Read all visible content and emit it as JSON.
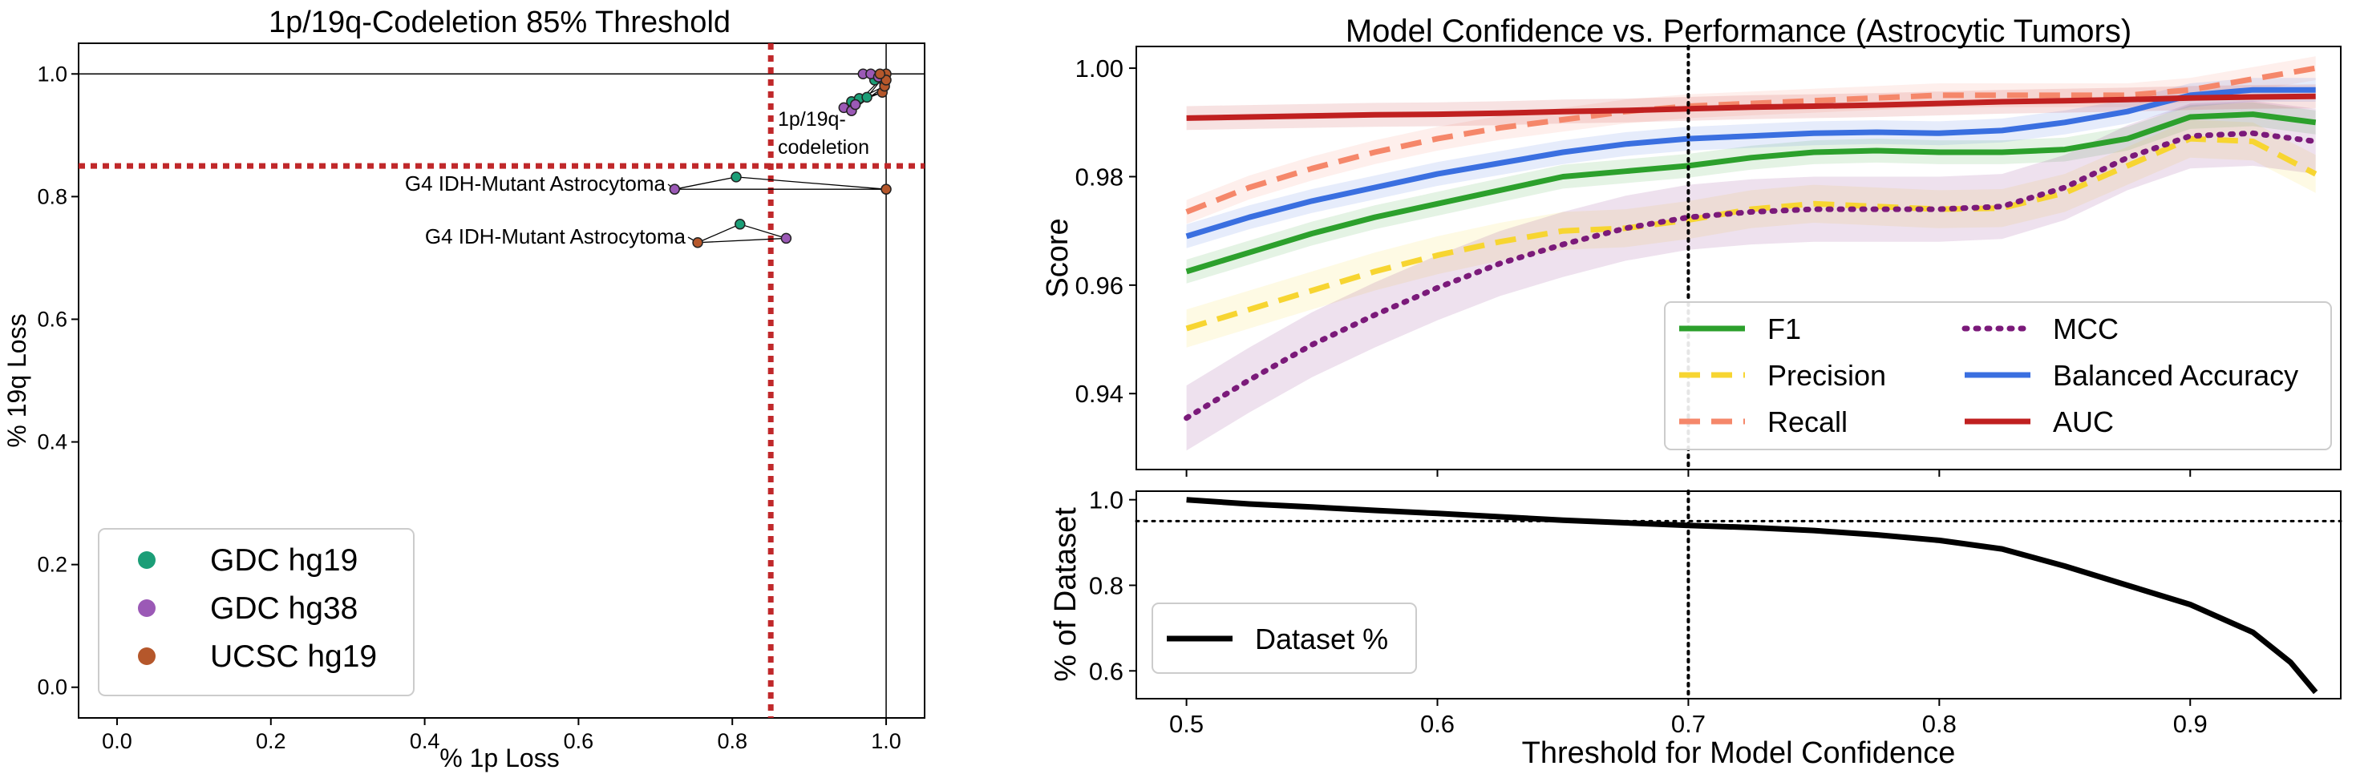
{
  "chart_data": [
    {
      "type": "scatter",
      "title": "1p/19q-Codeletion 85% Threshold",
      "xlabel": "% 1p Loss",
      "ylabel": "% 19q Loss",
      "xlim": [
        -0.05,
        1.05
      ],
      "ylim": [
        -0.05,
        1.05
      ],
      "xticks": [
        "0.0",
        "0.2",
        "0.4",
        "0.6",
        "0.8",
        "1.0"
      ],
      "yticks": [
        "0.0",
        "0.2",
        "0.4",
        "0.6",
        "0.8",
        "1.0"
      ],
      "threshold": 0.85,
      "legend_position": "lower left",
      "series": [
        {
          "name": "GDC hg19",
          "color": "#1b9e77",
          "points": [
            [
              0.805,
              0.832
            ],
            [
              0.81,
              0.755
            ],
            [
              0.955,
              0.955
            ],
            [
              0.965,
              0.96
            ],
            [
              0.975,
              0.962
            ],
            [
              0.985,
              0.99
            ],
            [
              0.99,
              0.998
            ],
            [
              0.998,
              0.985
            ]
          ]
        },
        {
          "name": "GDC hg38",
          "color": "#9b59b6",
          "points": [
            [
              0.725,
              0.812
            ],
            [
              0.87,
              0.732
            ],
            [
              0.945,
              0.945
            ],
            [
              0.955,
              0.94
            ],
            [
              0.96,
              0.95
            ],
            [
              0.97,
              1.0
            ],
            [
              0.98,
              1.0
            ],
            [
              0.99,
              0.995
            ]
          ]
        },
        {
          "name": "UCSC hg19",
          "color": "#b5572b",
          "points": [
            [
              1.0,
              0.812
            ],
            [
              0.755,
              0.725
            ],
            [
              0.995,
              0.97
            ],
            [
              0.998,
              0.98
            ],
            [
              1.0,
              1.0
            ],
            [
              1.0,
              0.99
            ],
            [
              0.992,
              1.0
            ]
          ]
        }
      ],
      "annotations": [
        {
          "text": "1p/19q-",
          "text2": "codeletion"
        },
        {
          "text": "G4 IDH-Mutant Astrocytoma"
        },
        {
          "text": "G4 IDH-Mutant Astrocytoma"
        }
      ]
    },
    {
      "type": "line",
      "title": "Model Confidence vs. Performance (Astrocytic Tumors)",
      "xlabel": "Threshold for Model Confidence",
      "ylabel": "Score",
      "xlim": [
        0.48,
        0.96
      ],
      "ylim": [
        0.926,
        1.004
      ],
      "xticks": [
        "0.5",
        "0.6",
        "0.7",
        "0.8",
        "0.9"
      ],
      "yticks": [
        "0.94",
        "0.96",
        "0.98",
        "1.00"
      ],
      "vline": 0.7,
      "legend_position": "lower right",
      "x": [
        0.5,
        0.525,
        0.55,
        0.575,
        0.6,
        0.625,
        0.65,
        0.675,
        0.7,
        0.725,
        0.75,
        0.775,
        0.8,
        0.825,
        0.85,
        0.875,
        0.9,
        0.925,
        0.95
      ],
      "series": [
        {
          "name": "F1",
          "color": "#2ca02c",
          "style": "solid",
          "values": [
            0.9625,
            0.966,
            0.9695,
            0.9725,
            0.975,
            0.9775,
            0.98,
            0.981,
            0.982,
            0.9835,
            0.9845,
            0.9848,
            0.9845,
            0.9845,
            0.985,
            0.987,
            0.991,
            0.9915,
            0.99
          ]
        },
        {
          "name": "Precision",
          "color": "#f7d531",
          "style": "dashed",
          "values": [
            0.952,
            0.9555,
            0.959,
            0.9625,
            0.9655,
            0.968,
            0.97,
            0.9705,
            0.972,
            0.974,
            0.975,
            0.9745,
            0.974,
            0.9742,
            0.977,
            0.982,
            0.987,
            0.9865,
            0.9805
          ]
        },
        {
          "name": "Recall",
          "color": "#f5876a",
          "style": "dashed",
          "values": [
            0.9735,
            0.978,
            0.9815,
            0.9845,
            0.987,
            0.989,
            0.9905,
            0.992,
            0.993,
            0.9935,
            0.994,
            0.9945,
            0.995,
            0.995,
            0.995,
            0.995,
            0.996,
            0.998,
            1.0
          ]
        },
        {
          "name": "MCC",
          "color": "#7b1a7a",
          "style": "dotted",
          "values": [
            0.9355,
            0.9425,
            0.949,
            0.9545,
            0.9595,
            0.964,
            0.9675,
            0.9705,
            0.9725,
            0.9735,
            0.974,
            0.974,
            0.974,
            0.9745,
            0.978,
            0.9835,
            0.9875,
            0.988,
            0.9865
          ]
        },
        {
          "name": "Balanced Accuracy",
          "color": "#3a6fe0",
          "style": "solid",
          "values": [
            0.969,
            0.9725,
            0.9755,
            0.978,
            0.9805,
            0.9825,
            0.9845,
            0.986,
            0.987,
            0.9875,
            0.988,
            0.9882,
            0.988,
            0.9885,
            0.99,
            0.992,
            0.995,
            0.996,
            0.996
          ]
        },
        {
          "name": "AUC",
          "color": "#c02020",
          "style": "solid",
          "values": [
            0.9908,
            0.991,
            0.9912,
            0.9914,
            0.9915,
            0.9917,
            0.992,
            0.9922,
            0.9925,
            0.9928,
            0.993,
            0.9932,
            0.9935,
            0.9938,
            0.994,
            0.9942,
            0.9945,
            0.9947,
            0.9948
          ]
        }
      ]
    },
    {
      "type": "line",
      "xlabel": "Threshold for Model Confidence",
      "ylabel": "% of Dataset",
      "xlim": [
        0.48,
        0.96
      ],
      "ylim": [
        0.535,
        1.02
      ],
      "xticks": [
        "0.5",
        "0.6",
        "0.7",
        "0.8",
        "0.9"
      ],
      "yticks": [
        "0.6",
        "0.8",
        "1.0"
      ],
      "vline": 0.7,
      "hline": 0.95,
      "legend_position": "lower left",
      "x": [
        0.5,
        0.525,
        0.55,
        0.575,
        0.6,
        0.625,
        0.65,
        0.675,
        0.7,
        0.725,
        0.75,
        0.775,
        0.8,
        0.825,
        0.85,
        0.875,
        0.9,
        0.925,
        0.94,
        0.95
      ],
      "series": [
        {
          "name": "Dataset %",
          "color": "#000000",
          "style": "solid",
          "values": [
            1.0,
            0.99,
            0.983,
            0.975,
            0.968,
            0.96,
            0.952,
            0.946,
            0.94,
            0.935,
            0.928,
            0.918,
            0.905,
            0.885,
            0.845,
            0.8,
            0.755,
            0.69,
            0.62,
            0.55
          ]
        }
      ]
    }
  ]
}
